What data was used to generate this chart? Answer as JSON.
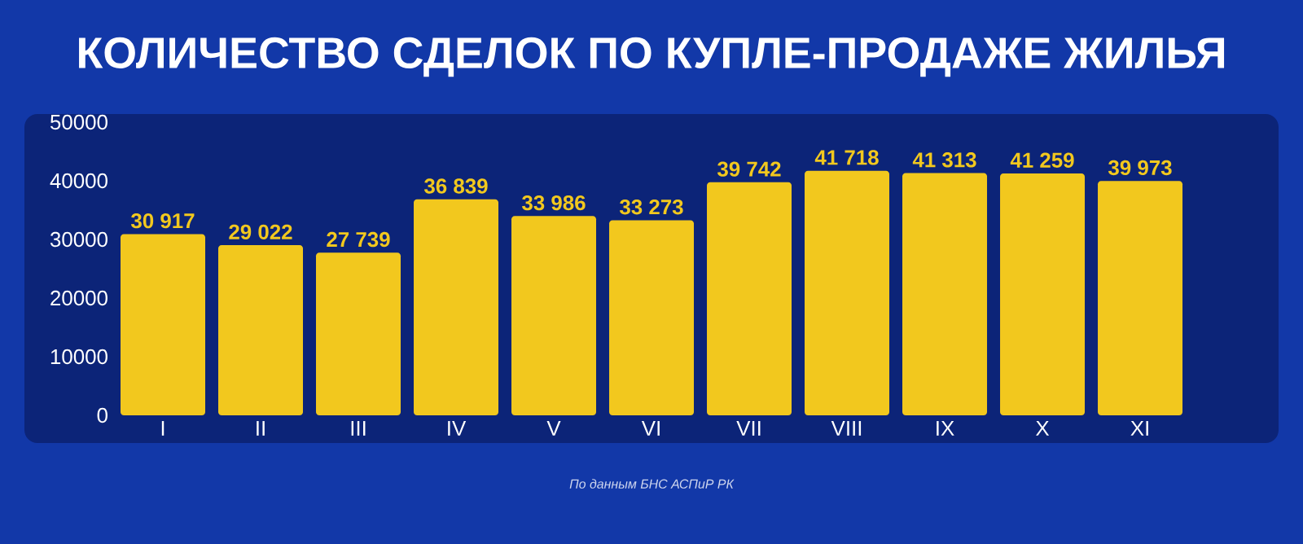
{
  "chart_data": {
    "type": "bar",
    "title": "КОЛИЧЕСТВО СДЕЛОК ПО КУПЛЕ-ПРОДАЖЕ ЖИЛЬЯ",
    "categories": [
      "I",
      "II",
      "III",
      "IV",
      "V",
      "VI",
      "VII",
      "VIII",
      "IX",
      "X",
      "XI"
    ],
    "values": [
      30917,
      29022,
      27739,
      36839,
      33986,
      33273,
      39742,
      41718,
      41313,
      41259,
      39973
    ],
    "value_labels": [
      "30 917",
      "29 022",
      "27 739",
      "36 839",
      "33 986",
      "33 273",
      "39 742",
      "41 718",
      "41 313",
      "41 259",
      "39 973"
    ],
    "color": "#f2c81e",
    "ylim": [
      0,
      50000
    ],
    "yticks": [
      0,
      10000,
      20000,
      30000,
      40000,
      50000
    ],
    "annotations": [
      "По данным БНС АСПиР РК"
    ]
  }
}
